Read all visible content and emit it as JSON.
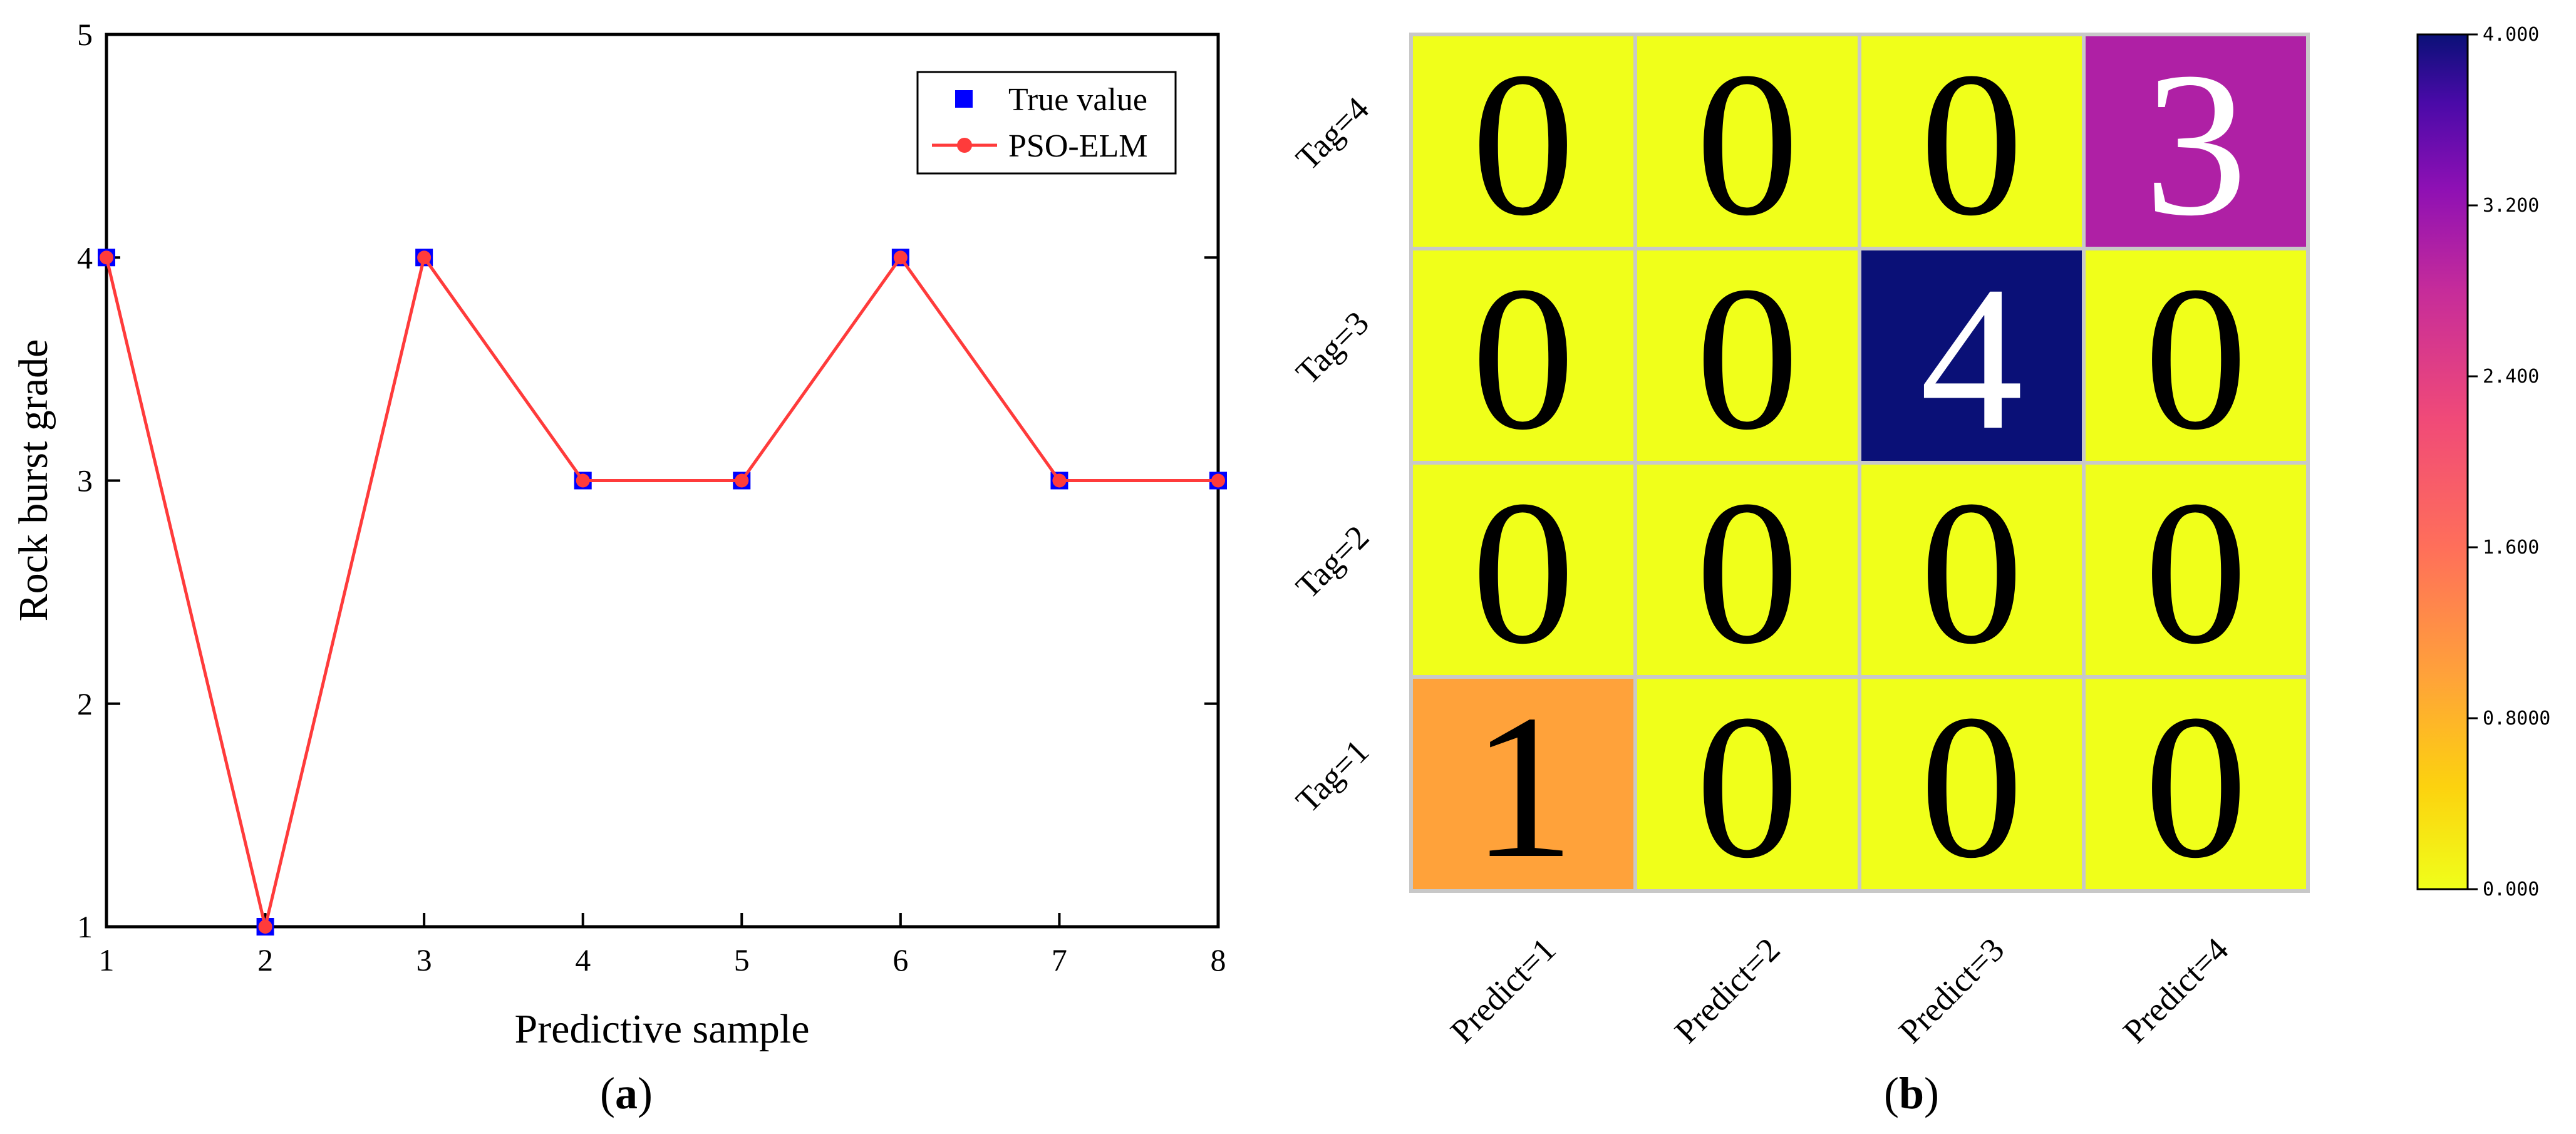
{
  "chart_data": [
    {
      "type": "line",
      "panel_label": "a",
      "xlabel": "Predictive sample",
      "ylabel": "Rock burst grade",
      "xlim": [
        1,
        8
      ],
      "ylim": [
        1,
        5
      ],
      "xticks": [
        1,
        2,
        3,
        4,
        5,
        6,
        7,
        8
      ],
      "yticks": [
        1,
        2,
        3,
        4,
        5
      ],
      "x": [
        1,
        2,
        3,
        4,
        5,
        6,
        7,
        8
      ],
      "series": [
        {
          "name": "True value",
          "marker": "square",
          "line": false,
          "color": "#0000ff",
          "values": [
            4,
            1,
            4,
            3,
            3,
            4,
            3,
            3
          ]
        },
        {
          "name": "PSO-ELM",
          "marker": "circle",
          "line": true,
          "color": "#ff3b3b",
          "values": [
            4,
            1,
            4,
            3,
            3,
            4,
            3,
            3
          ]
        }
      ],
      "legend_position": "top-right",
      "grid": false
    },
    {
      "type": "heatmap",
      "panel_label": "b",
      "rows": [
        "Tag=4",
        "Tag=3",
        "Tag=2",
        "Tag=1"
      ],
      "columns": [
        "Predict=1",
        "Predict=2",
        "Predict=3",
        "Predict=4"
      ],
      "values": [
        [
          0,
          0,
          0,
          3
        ],
        [
          0,
          0,
          4,
          0
        ],
        [
          0,
          0,
          0,
          0
        ],
        [
          1,
          0,
          0,
          0
        ]
      ],
      "colorbar": {
        "min": 0,
        "max": 4,
        "ticks": [
          {
            "value": 0,
            "label": "0.000"
          },
          {
            "value": 0.8,
            "label": "0.8000"
          },
          {
            "value": 1.6,
            "label": "1.600"
          },
          {
            "value": 2.4,
            "label": "2.400"
          },
          {
            "value": 3.2,
            "label": "3.200"
          },
          {
            "value": 4,
            "label": "4.000"
          }
        ]
      },
      "grid": true
    }
  ]
}
